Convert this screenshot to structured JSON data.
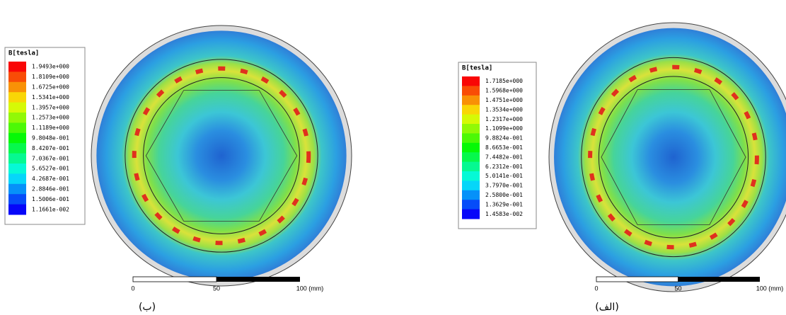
{
  "panels": [
    {
      "legend": {
        "title": "B[tesla]",
        "labels": [
          "1.9493e+000",
          "1.8109e+000",
          "1.6725e+000",
          "1.5341e+000",
          "1.3957e+000",
          "1.2573e+000",
          "1.1189e+000",
          "9.8048e-001",
          "8.4207e-001",
          "7.0367e-001",
          "5.6527e-001",
          "4.2687e-001",
          "2.8846e-001",
          "1.5006e-001",
          "1.1661e-002"
        ]
      },
      "scale": {
        "labels": [
          "0",
          "50",
          "100 (mm)"
        ]
      },
      "caption": "(ب)"
    },
    {
      "legend": {
        "title": "B[tesla]",
        "labels": [
          "1.7185e+000",
          "1.5968e+000",
          "1.4751e+000",
          "1.3534e+000",
          "1.2317e+000",
          "1.1099e+000",
          "9.8824e-001",
          "8.6653e-001",
          "7.4482e-001",
          "6.2312e-001",
          "5.0141e-001",
          "3.7970e-001",
          "2.5800e-001",
          "1.3629e-001",
          "1.4583e-002"
        ]
      },
      "scale": {
        "labels": [
          "0",
          "50",
          "100 (mm)"
        ]
      },
      "caption": "(الف)"
    }
  ]
}
